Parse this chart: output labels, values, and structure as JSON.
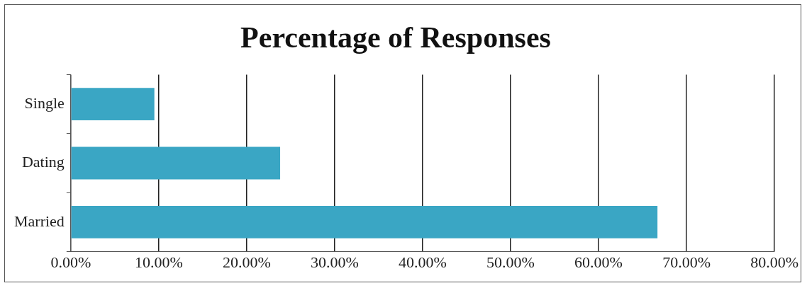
{
  "chart_data": {
    "type": "bar",
    "title": "Percentage of Responses",
    "orientation": "horizontal",
    "categories": [
      "Single",
      "Dating",
      "Married"
    ],
    "values": [
      9.5,
      23.8,
      66.7
    ],
    "color": "#3aa6c4",
    "xlim": [
      0,
      80
    ],
    "xticks": [
      {
        "value": 0,
        "label": "0.00%"
      },
      {
        "value": 10,
        "label": "10.00%"
      },
      {
        "value": 20,
        "label": "20.00%"
      },
      {
        "value": 30,
        "label": "30.00%"
      },
      {
        "value": 40,
        "label": "40.00%"
      },
      {
        "value": 50,
        "label": "50.00%"
      },
      {
        "value": 60,
        "label": "60.00%"
      },
      {
        "value": 70,
        "label": "70.00%"
      },
      {
        "value": 80,
        "label": "80.00%"
      }
    ],
    "grid": "x",
    "legend": false
  }
}
